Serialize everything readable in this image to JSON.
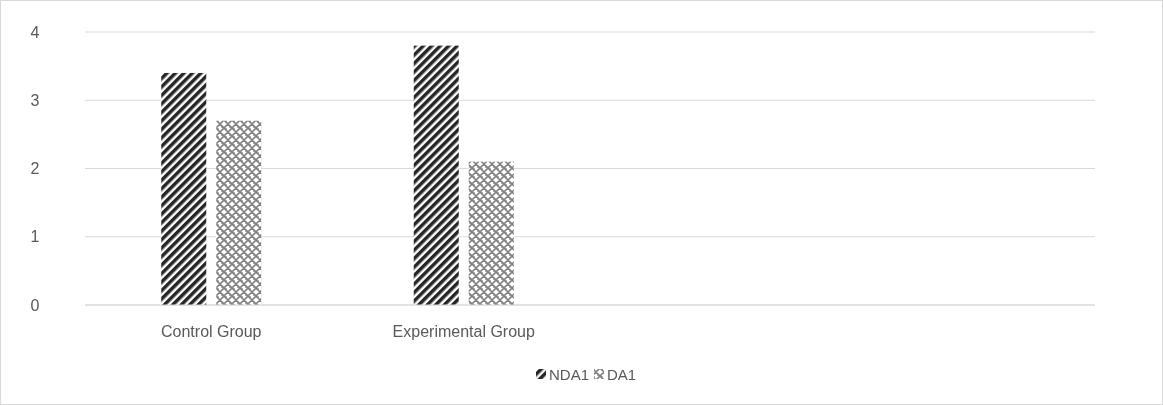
{
  "chart_data": {
    "type": "bar",
    "categories": [
      "Control Group",
      "Experimental Group",
      null,
      null
    ],
    "series": [
      {
        "name": "NDA1",
        "color": "#262626",
        "values": [
          3.4,
          3.8,
          null,
          null
        ]
      },
      {
        "name": "DA1",
        "color": "#7f7f7f",
        "values": [
          2.7,
          2.1,
          null,
          null
        ]
      }
    ],
    "ylim": [
      0,
      4
    ],
    "yticks": [
      0,
      1,
      2,
      3,
      4
    ],
    "grid": "y",
    "legend": "bottom"
  }
}
